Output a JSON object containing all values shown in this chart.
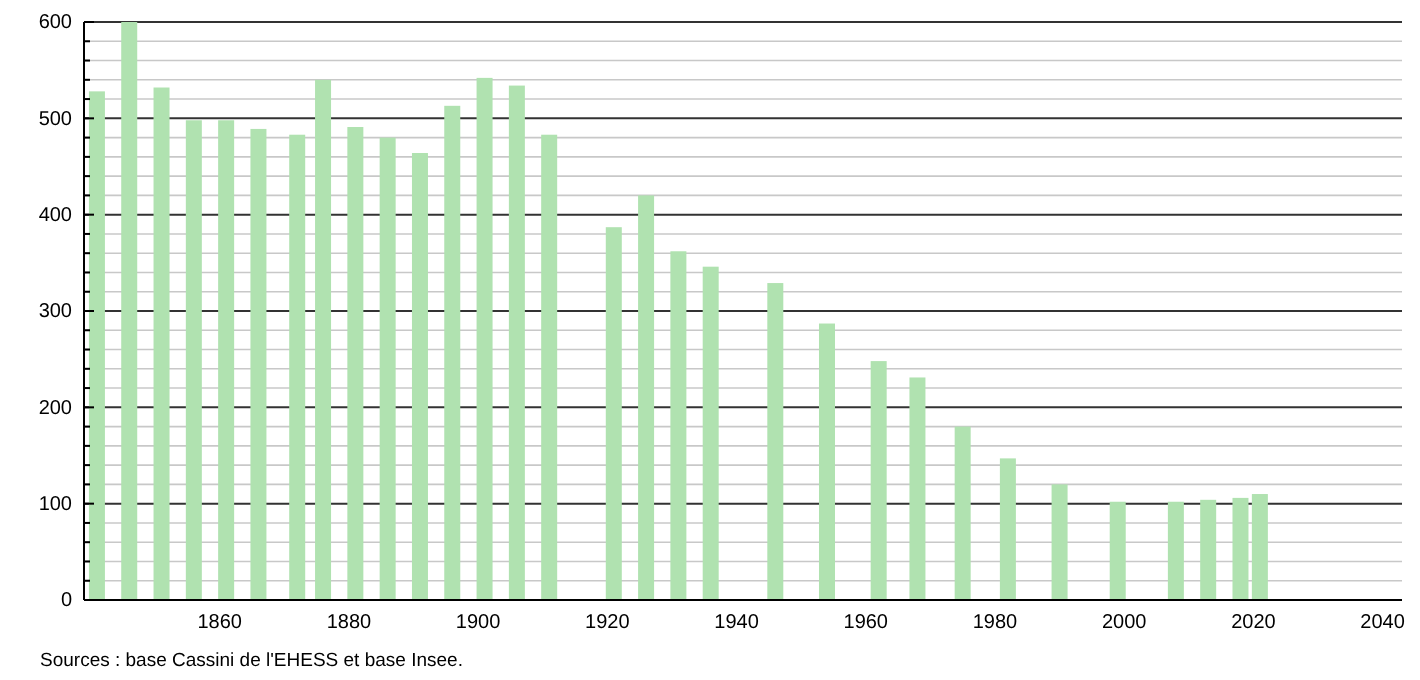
{
  "chart_data": {
    "type": "bar",
    "x": [
      1841,
      1846,
      1851,
      1856,
      1861,
      1866,
      1872,
      1876,
      1881,
      1886,
      1891,
      1896,
      1901,
      1906,
      1911,
      1921,
      1926,
      1931,
      1936,
      1946,
      1954,
      1962,
      1968,
      1975,
      1982,
      1990,
      1999,
      2008,
      2013,
      2018,
      2021
    ],
    "values": [
      528,
      600,
      532,
      498,
      498,
      489,
      483,
      540,
      491,
      480,
      464,
      513,
      542,
      534,
      483,
      387,
      420,
      362,
      346,
      329,
      287,
      248,
      231,
      180,
      147,
      120,
      102,
      102,
      104,
      106,
      110
    ],
    "color": "#b0e2b0",
    "xlim": [
      1839,
      2043
    ],
    "xticks": [
      1860,
      1880,
      1900,
      1920,
      1940,
      1960,
      1980,
      2000,
      2020,
      2040
    ],
    "ylim": [
      0,
      600
    ],
    "yticks": [
      0,
      {
        "value": 20,
        "label": null
      },
      {
        "value": 40,
        "label": null
      },
      {
        "value": 60,
        "label": null
      },
      {
        "value": 80,
        "label": null
      },
      100,
      {
        "value": 120,
        "label": null
      },
      {
        "value": 140,
        "label": null
      },
      {
        "value": 160,
        "label": null
      },
      {
        "value": 180,
        "label": null
      },
      200,
      {
        "value": 220,
        "label": null
      },
      {
        "value": 240,
        "label": null
      },
      {
        "value": 260,
        "label": null
      },
      {
        "value": 280,
        "label": null
      },
      300,
      {
        "value": 320,
        "label": null
      },
      {
        "value": 340,
        "label": null
      },
      {
        "value": 360,
        "label": null
      },
      {
        "value": 380,
        "label": null
      },
      400,
      {
        "value": 420,
        "label": null
      },
      {
        "value": 440,
        "label": null
      },
      {
        "value": 460,
        "label": null
      },
      {
        "value": 480,
        "label": null
      },
      500,
      {
        "value": 520,
        "label": null
      },
      {
        "value": 540,
        "label": null
      },
      {
        "value": 560,
        "label": null
      },
      {
        "value": 580,
        "label": null
      },
      600
    ],
    "grid": "y",
    "annotations": [
      "Sources : base Cassini de l'EHESS et base Insee."
    ]
  }
}
